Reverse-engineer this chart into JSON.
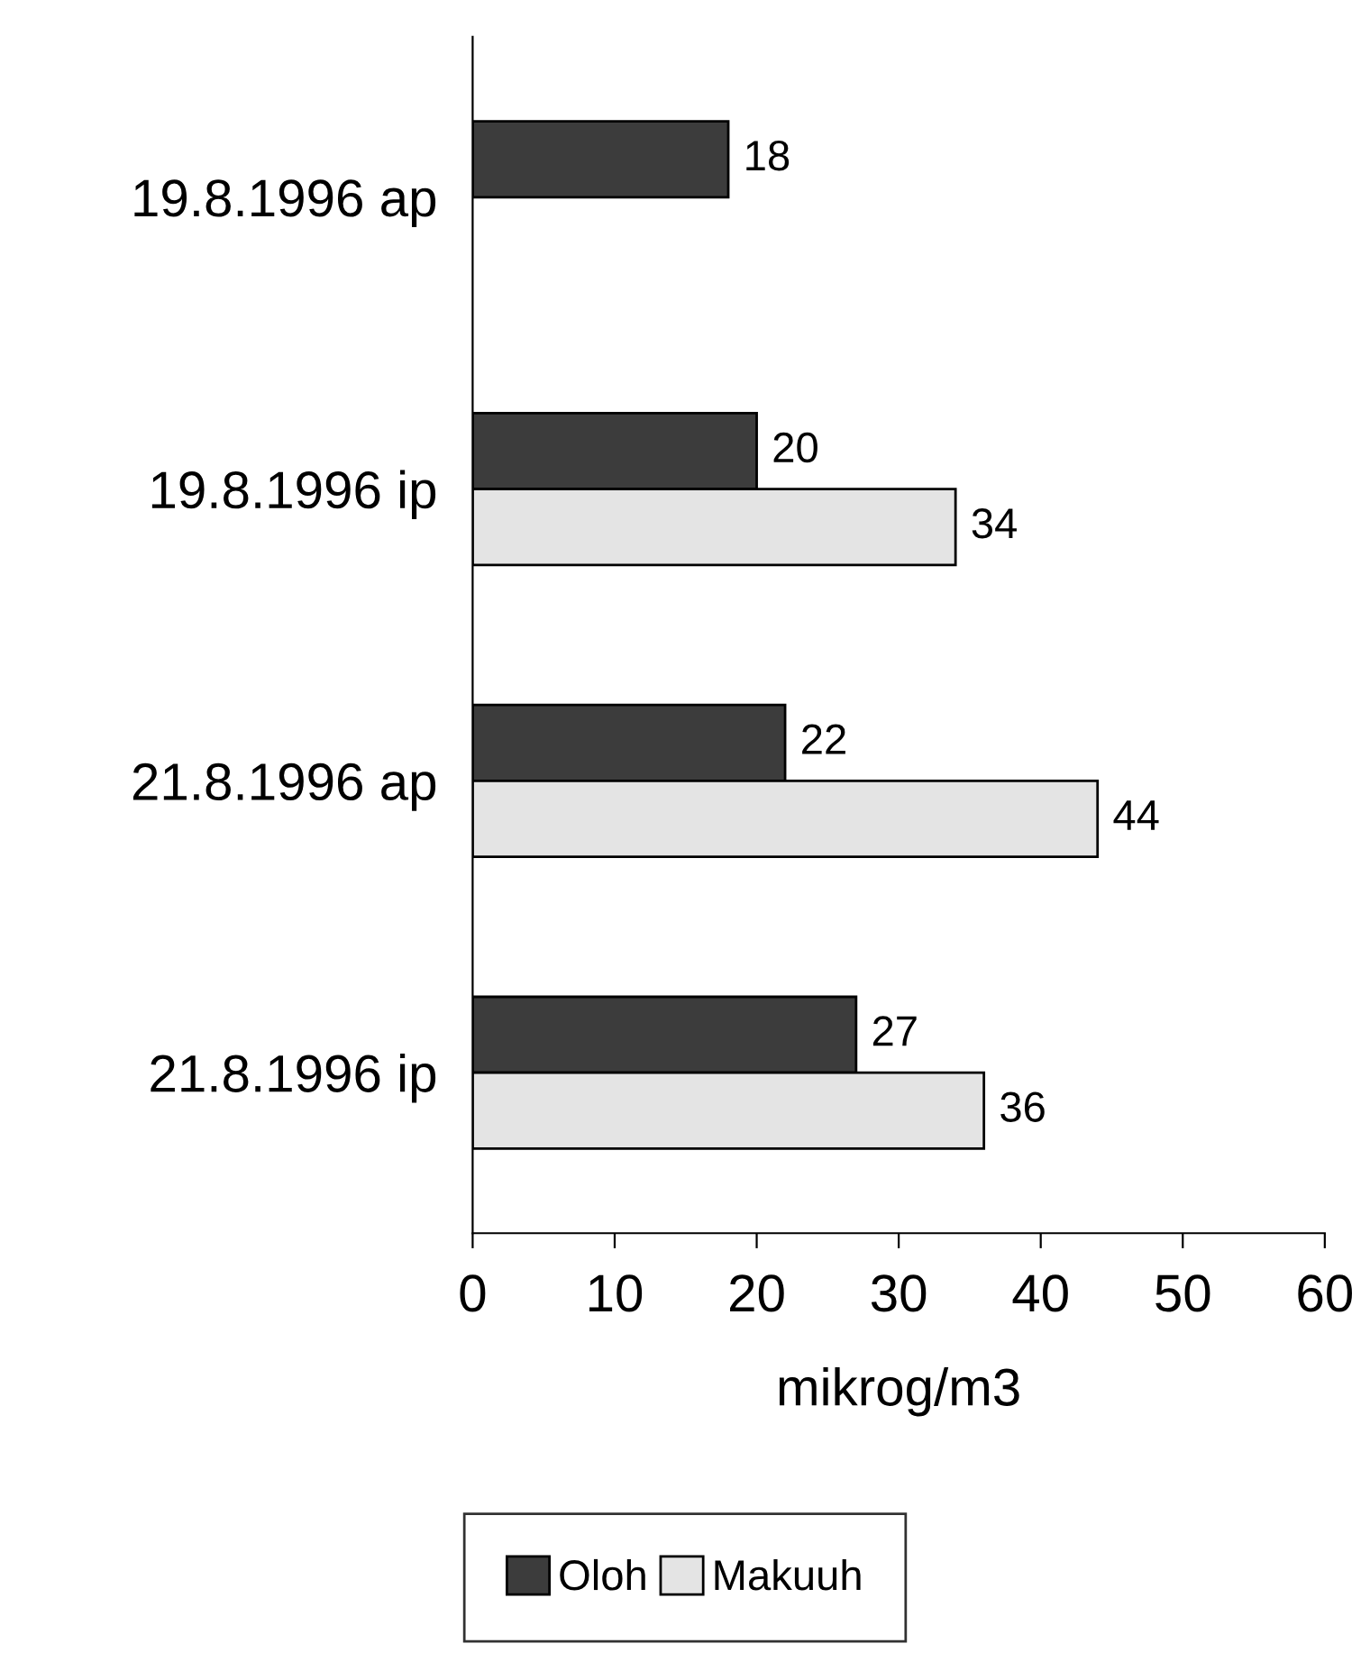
{
  "chart_data": {
    "type": "bar",
    "orientation": "horizontal",
    "xlabel": "mikrog/m3",
    "categories": [
      "19.8.1996 ap",
      "19.8.1996 ip",
      "21.8.1996 ap",
      "21.8.1996 ip"
    ],
    "series": [
      {
        "name": "Oloh",
        "color": "#3c3c3c",
        "values": [
          18,
          20,
          22,
          27
        ]
      },
      {
        "name": "Makuuh",
        "color": "#e4e4e4",
        "values": [
          null,
          34,
          44,
          36
        ]
      }
    ],
    "xlim": [
      0,
      60
    ],
    "xticks": [
      0,
      10,
      20,
      30,
      40,
      50,
      60
    ],
    "grid": false,
    "legend": "bottom",
    "data_labels": true
  }
}
